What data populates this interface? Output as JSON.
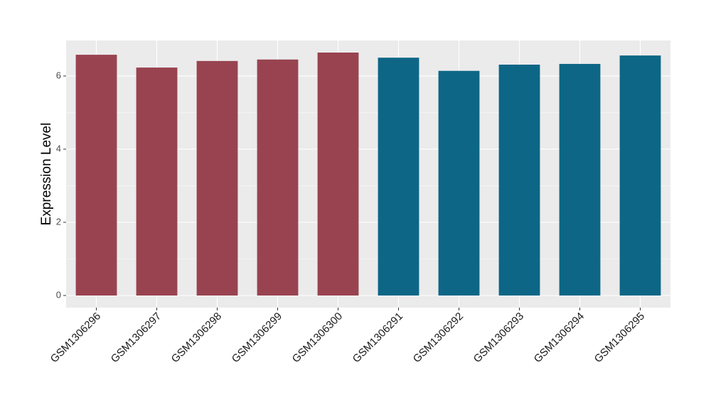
{
  "chart_data": {
    "type": "bar",
    "y_label": "Expression Level",
    "categories": [
      "GSM1306296",
      "GSM1306297",
      "GSM1306298",
      "GSM1306299",
      "GSM1306300",
      "GSM1306291",
      "GSM1306292",
      "GSM1306293",
      "GSM1306294",
      "GSM1306295"
    ],
    "values": [
      6.58,
      6.23,
      6.41,
      6.45,
      6.64,
      6.5,
      6.14,
      6.31,
      6.33,
      6.56
    ],
    "colors": [
      "#994350",
      "#994350",
      "#994350",
      "#994350",
      "#994350",
      "#0d6686",
      "#0d6686",
      "#0d6686",
      "#0d6686",
      "#0d6686"
    ],
    "ylim": [
      -0.33,
      6.97
    ],
    "yticks": [
      0,
      2,
      4,
      6
    ],
    "yticks_minor": [
      1,
      3,
      5
    ],
    "grid": true
  }
}
